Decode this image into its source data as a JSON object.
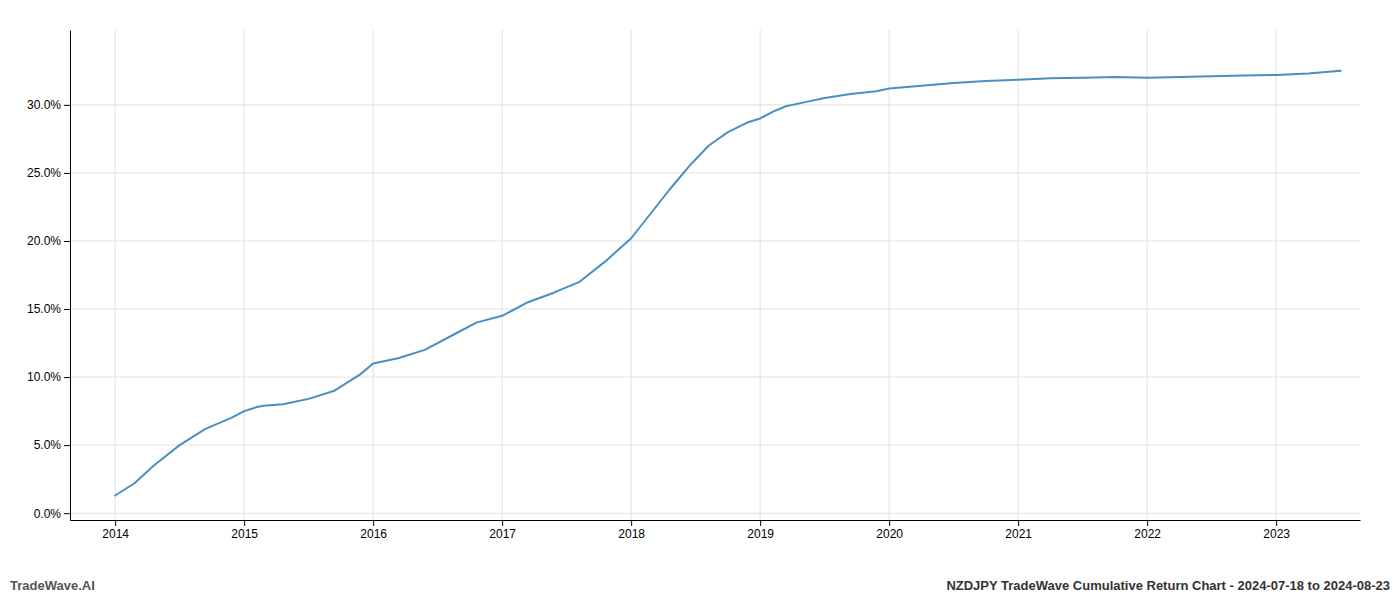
{
  "chart_data": {
    "type": "line",
    "title": "NZDJPY TradeWave Cumulative Return Chart - 2024-07-18 to 2024-08-23",
    "annotations": [
      "TradeWave.AI"
    ],
    "color": "#4a8fc2",
    "x": [
      2014.0,
      2014.15,
      2014.3,
      2014.5,
      2014.7,
      2014.9,
      2015.0,
      2015.1,
      2015.15,
      2015.3,
      2015.5,
      2015.7,
      2015.9,
      2016.0,
      2016.2,
      2016.4,
      2016.6,
      2016.8,
      2017.0,
      2017.2,
      2017.4,
      2017.6,
      2017.8,
      2018.0,
      2018.15,
      2018.3,
      2018.45,
      2018.6,
      2018.75,
      2018.9,
      2019.0,
      2019.1,
      2019.2,
      2019.35,
      2019.5,
      2019.7,
      2019.9,
      2020.0,
      2020.25,
      2020.5,
      2020.75,
      2021.0,
      2021.25,
      2021.5,
      2021.75,
      2022.0,
      2022.25,
      2022.5,
      2022.75,
      2023.0,
      2023.25,
      2023.5
    ],
    "values": [
      1.3,
      2.2,
      3.5,
      5.0,
      6.2,
      7.0,
      7.5,
      7.8,
      7.9,
      8.0,
      8.4,
      9.0,
      10.2,
      11.0,
      11.4,
      12.0,
      13.0,
      14.0,
      14.5,
      15.5,
      16.2,
      17.0,
      18.5,
      20.2,
      22.0,
      23.8,
      25.5,
      27.0,
      28.0,
      28.7,
      29.0,
      29.5,
      29.9,
      30.2,
      30.5,
      30.8,
      31.0,
      31.2,
      31.4,
      31.6,
      31.75,
      31.85,
      31.95,
      32.0,
      32.05,
      32.0,
      32.05,
      32.1,
      32.15,
      32.2,
      32.3,
      32.5
    ],
    "xlim": [
      2013.65,
      2023.65
    ],
    "xticks": [
      2014,
      2015,
      2016,
      2017,
      2018,
      2019,
      2020,
      2021,
      2022,
      2023
    ],
    "ylim": [
      -0.5,
      35.5
    ],
    "yticks": [
      {
        "value": 0.0,
        "label": "0.0%"
      },
      {
        "value": 5.0,
        "label": "5.0%"
      },
      {
        "value": 10.0,
        "label": "10.0%"
      },
      {
        "value": 15.0,
        "label": "15.0%"
      },
      {
        "value": 20.0,
        "label": "20.0%"
      },
      {
        "value": 25.0,
        "label": "25.0%"
      },
      {
        "value": 30.0,
        "label": "30.0%"
      }
    ],
    "grid": true
  }
}
